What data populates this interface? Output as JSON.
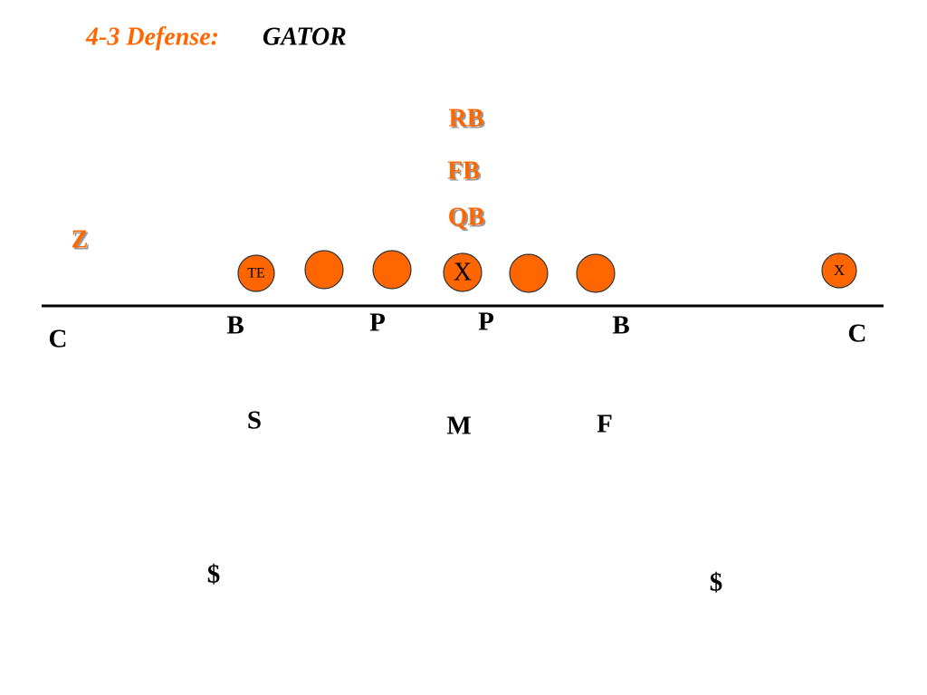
{
  "title": {
    "prefix": "4-3 Defense:",
    "name": "GATOR"
  },
  "offense": {
    "backs": [
      "RB",
      "FB",
      "QB"
    ],
    "flanker": "Z",
    "tight_end": "TE",
    "center": "X",
    "split_end": "X"
  },
  "defense": [
    "C",
    "B",
    "P",
    "P",
    "B",
    "C",
    "S",
    "M",
    "F",
    "$",
    "$"
  ]
}
